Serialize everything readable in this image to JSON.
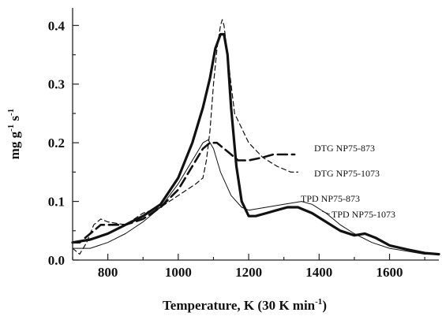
{
  "chart_data": {
    "type": "line",
    "xlabel": "Temperature, K (30 K min",
    "xlabel_sup": "-1",
    "xlabel_close": ")",
    "ylabel_base": "mg g",
    "ylabel_sup1": "-1",
    "ylabel_mid": " s",
    "ylabel_sup2": "-1",
    "xlim": [
      700,
      1740
    ],
    "ylim": [
      0,
      0.43
    ],
    "x_ticks": [
      "800",
      "1000",
      "1200",
      "1400",
      "1600"
    ],
    "x_tick_values": [
      800,
      1000,
      1200,
      1400,
      1600
    ],
    "y_ticks": [
      "0.0",
      "0.1",
      "0.2",
      "0.3",
      "0.4"
    ],
    "y_tick_values": [
      0.0,
      0.1,
      0.2,
      0.3,
      0.4
    ],
    "grid": false,
    "annotations": [
      "DTG NP75-873",
      "DTG NP75-1073",
      "TPD NP75-873",
      "TPD NP75-1073"
    ],
    "series": [
      {
        "name": "DTG NP75-873",
        "style": "dash-thick",
        "x": [
          700,
          720,
          740,
          760,
          780,
          800,
          850,
          900,
          950,
          1000,
          1040,
          1070,
          1090,
          1110,
          1130,
          1150,
          1170,
          1200,
          1240,
          1270,
          1300,
          1330
        ],
        "y": [
          0.03,
          0.03,
          0.04,
          0.05,
          0.06,
          0.06,
          0.06,
          0.07,
          0.09,
          0.12,
          0.16,
          0.19,
          0.2,
          0.2,
          0.19,
          0.18,
          0.17,
          0.17,
          0.175,
          0.18,
          0.18,
          0.18
        ]
      },
      {
        "name": "DTG NP75-1073",
        "style": "dash-thin",
        "x": [
          700,
          720,
          740,
          760,
          780,
          800,
          850,
          900,
          950,
          1000,
          1050,
          1070,
          1080,
          1090,
          1100,
          1110,
          1120,
          1125,
          1130,
          1140,
          1160,
          1200,
          1240,
          1280,
          1320,
          1340
        ],
        "y": [
          0.02,
          0.01,
          0.03,
          0.06,
          0.07,
          0.065,
          0.06,
          0.08,
          0.09,
          0.11,
          0.13,
          0.14,
          0.17,
          0.22,
          0.3,
          0.36,
          0.4,
          0.41,
          0.4,
          0.35,
          0.25,
          0.2,
          0.175,
          0.16,
          0.15,
          0.15
        ]
      },
      {
        "name": "TPD NP75-873",
        "style": "solid-thin",
        "x": [
          700,
          750,
          800,
          850,
          900,
          950,
          1000,
          1040,
          1070,
          1085,
          1100,
          1120,
          1150,
          1180,
          1200,
          1250,
          1300,
          1350,
          1380,
          1420,
          1460,
          1500,
          1550,
          1600,
          1650,
          1700,
          1740
        ],
        "y": [
          0.02,
          0.02,
          0.03,
          0.045,
          0.065,
          0.09,
          0.13,
          0.17,
          0.2,
          0.205,
          0.19,
          0.15,
          0.11,
          0.09,
          0.085,
          0.09,
          0.095,
          0.1,
          0.095,
          0.08,
          0.06,
          0.045,
          0.03,
          0.02,
          0.015,
          0.01,
          0.01
        ]
      },
      {
        "name": "TPD NP75-1073",
        "style": "solid-thick",
        "x": [
          700,
          750,
          800,
          850,
          900,
          950,
          1000,
          1040,
          1070,
          1090,
          1105,
          1120,
          1130,
          1140,
          1150,
          1165,
          1180,
          1200,
          1220,
          1250,
          1280,
          1310,
          1340,
          1380,
          1420,
          1460,
          1500,
          1530,
          1560,
          1600,
          1650,
          1700,
          1740
        ],
        "y": [
          0.03,
          0.035,
          0.045,
          0.06,
          0.075,
          0.095,
          0.14,
          0.2,
          0.26,
          0.31,
          0.36,
          0.385,
          0.385,
          0.35,
          0.26,
          0.16,
          0.1,
          0.075,
          0.075,
          0.08,
          0.085,
          0.09,
          0.09,
          0.08,
          0.065,
          0.05,
          0.042,
          0.045,
          0.038,
          0.025,
          0.018,
          0.012,
          0.01
        ]
      }
    ]
  }
}
